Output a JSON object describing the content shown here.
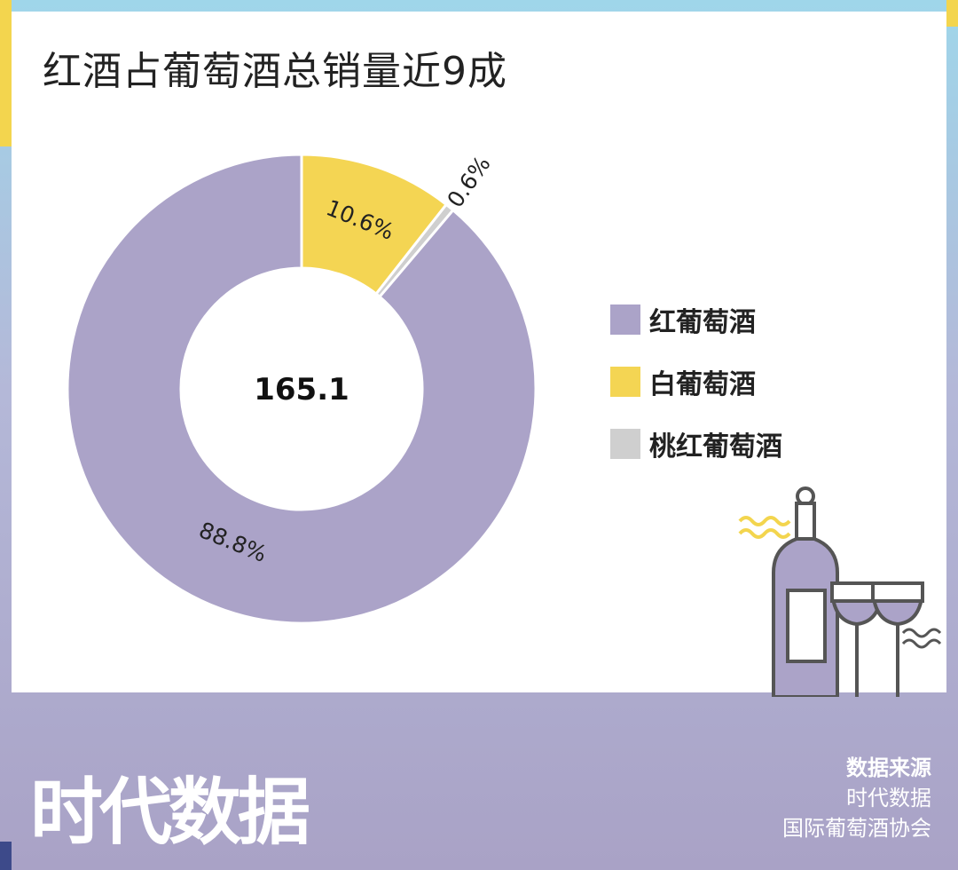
{
  "title": "红酒占葡萄酒总销量近9成",
  "chart_data": {
    "type": "pie",
    "style": "donut",
    "center_value": "165.1",
    "categories": [
      "红葡萄酒",
      "白葡萄酒",
      "桃红葡萄酒"
    ],
    "values": [
      88.8,
      10.6,
      0.6
    ],
    "labels": [
      "88.8%",
      "10.6%",
      "0.6%"
    ],
    "colors": [
      "#aba3c8",
      "#f4d553",
      "#cfcfcf"
    ],
    "legend_position": "right"
  },
  "brand": "时代数据",
  "source": {
    "title": "数据来源",
    "lines": [
      "时代数据",
      "国际葡萄酒协会"
    ]
  },
  "decor_icon": "wine-bottle-and-glasses-icon"
}
